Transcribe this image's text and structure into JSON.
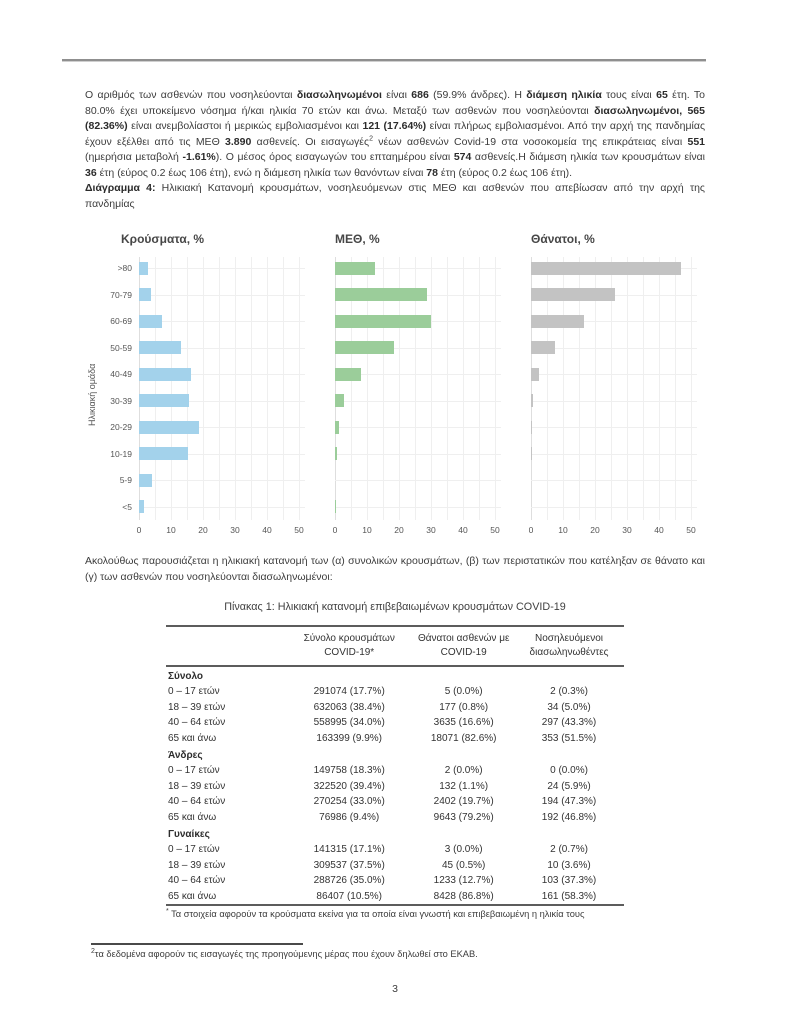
{
  "intro": {
    "segments": [
      {
        "t": "Ο αριθμός των ασθενών που νοσηλεύονται ",
        "b": false
      },
      {
        "t": "διασωληνωμένοι",
        "b": true
      },
      {
        "t": " είναι ",
        "b": false
      },
      {
        "t": "686",
        "b": true
      },
      {
        "t": " (59.9% άνδρες).  Η ",
        "b": false
      },
      {
        "t": "διάμεση ηλικία",
        "b": true
      },
      {
        "t": " τους είναι ",
        "b": false
      },
      {
        "t": "65",
        "b": true
      },
      {
        "t": " έτη.  Το 80.0% έχει υποκείμενο νόσημα ή/και ηλικία 70 ετών και άνω. Μεταξύ των ασθενών που νοσηλεύονται ",
        "b": false
      },
      {
        "t": "διασωληνωμένοι, 565 (82.36%)",
        "b": true
      },
      {
        "t": " είναι ανεμβολίαστοι ή μερικώς εμβολιασμένοι και ",
        "b": false
      },
      {
        "t": "121 (17.64%)",
        "b": true
      },
      {
        "t": " είναι πλήρως εμβολιασμένοι. Από την αρχή της πανδημίας έχουν εξέλθει από τις ΜΕΘ ",
        "b": false
      },
      {
        "t": "3.890",
        "b": true
      },
      {
        "t": " ασθενείς. Οι εισαγωγές",
        "b": false
      },
      {
        "t": "2",
        "b": false,
        "sup": true
      },
      {
        "t": " νέων ασθενών Covid-19 στα νοσοκομεία της επικράτειας είναι ",
        "b": false
      },
      {
        "t": "551",
        "b": true
      },
      {
        "t": " (ημερήσια μεταβολή ",
        "b": false
      },
      {
        "t": "-1.61%",
        "b": true
      },
      {
        "t": ").  Ο μέσος όρος εισαγωγών του επταημέρου είναι ",
        "b": false
      },
      {
        "t": "574",
        "b": true
      },
      {
        "t": " ασθενείς.Η διάμεση ηλικία των κρουσμάτων είναι ",
        "b": false
      },
      {
        "t": "36",
        "b": true
      },
      {
        "t": " έτη (εύρος 0.2 έως 106 έτη), ενώ η διάμεση ηλικία των θανόντων είναι ",
        "b": false
      },
      {
        "t": "78",
        "b": true
      },
      {
        "t": " έτη (εύρος 0.2 έως 106 έτη).",
        "b": false
      }
    ]
  },
  "figure_caption": {
    "segments": [
      {
        "t": "Διάγραμμα 4:",
        "b": true
      },
      {
        "t": " Ηλικιακή Κατανομή κρουσμάτων, νοσηλευόμενων στις ΜΕΘ και ασθενών που απεβίωσαν από την αρχή της πανδημίας",
        "b": false
      }
    ]
  },
  "chart_data": [
    {
      "type": "bar",
      "orientation": "horizontal",
      "title": "Κρούσματα, %",
      "ylabel": "Ηλικιακή ομάδα",
      "categories": [
        ">80",
        "70-79",
        "60-69",
        "50-59",
        "40-49",
        "30-39",
        "20-29",
        "10-19",
        "5-9",
        "<5"
      ],
      "values": [
        2.7,
        3.9,
        7.3,
        13.0,
        16.4,
        15.5,
        18.8,
        15.3,
        4.0,
        1.7
      ],
      "color": "#a3d2eb",
      "xlim": [
        0,
        50
      ],
      "xticks": [
        0,
        10,
        20,
        30,
        40,
        50
      ],
      "grid": "on"
    },
    {
      "type": "bar",
      "orientation": "horizontal",
      "title": "ΜΕΘ, %",
      "categories": [
        ">80",
        "70-79",
        "60-69",
        "50-59",
        "40-49",
        "30-39",
        "20-29",
        "10-19",
        "5-9",
        "<5"
      ],
      "values": [
        12.4,
        28.7,
        30.0,
        18.3,
        8.0,
        2.7,
        1.1,
        0.5,
        0.0,
        0.2
      ],
      "color": "#9bcd9a",
      "xlim": [
        0,
        50
      ],
      "xticks": [
        0,
        10,
        20,
        30,
        40,
        50
      ],
      "grid": "on"
    },
    {
      "type": "bar",
      "orientation": "horizontal",
      "title": "Θάνατοι, %",
      "categories": [
        ">80",
        "70-79",
        "60-69",
        "50-59",
        "40-49",
        "30-39",
        "20-29",
        "10-19",
        "5-9",
        "<5"
      ],
      "values": [
        46.8,
        26.1,
        16.6,
        7.5,
        2.4,
        0.7,
        0.15,
        0.05,
        0.0,
        0.0
      ],
      "color": "#c3c3c3",
      "xlim": [
        0,
        50
      ],
      "xticks": [
        0,
        10,
        20,
        30,
        40,
        50
      ],
      "grid": "on"
    }
  ],
  "middle_text": "Ακολούθως παρουσιάζεται η ηλικιακή κατανομή των (α) συνολικών κρουσμάτων, (β) των περιστατικών που κατέληξαν σε θάνατο και (γ) των ασθενών που νοσηλεύονται διασωληνωμένοι:",
  "table": {
    "title": "Πίνακας 1: Ηλικιακή κατανομή επιβεβαιωμένων κρουσμάτων COVID-19",
    "columns": [
      "",
      "Σύνολο κρουσμάτων COVID-19*",
      "Θάνατοι ασθενών με COVID-19",
      "Νοσηλευόμενοι διασωληνωθέντες"
    ],
    "sections": [
      {
        "label": "Σύνολο",
        "rows": [
          [
            "0 – 17 ετών",
            "291074 (17.7%)",
            "5 (0.0%)",
            "2 (0.3%)"
          ],
          [
            "18 – 39 ετών",
            "632063 (38.4%)",
            "177 (0.8%)",
            "34 (5.0%)"
          ],
          [
            "40 – 64 ετών",
            "558995 (34.0%)",
            "3635 (16.6%)",
            "297 (43.3%)"
          ],
          [
            "65 και άνω",
            "163399 (9.9%)",
            "18071 (82.6%)",
            "353 (51.5%)"
          ]
        ]
      },
      {
        "label": "Άνδρες",
        "rows": [
          [
            "0 – 17 ετών",
            "149758 (18.3%)",
            "2 (0.0%)",
            "0 (0.0%)"
          ],
          [
            "18 – 39 ετών",
            "322520 (39.4%)",
            "132 (1.1%)",
            "24 (5.9%)"
          ],
          [
            "40 – 64 ετών",
            "270254 (33.0%)",
            "2402 (19.7%)",
            "194 (47.3%)"
          ],
          [
            "65 και άνω",
            "76986 (9.4%)",
            "9643 (79.2%)",
            "192 (46.8%)"
          ]
        ]
      },
      {
        "label": "Γυναίκες",
        "rows": [
          [
            "0 – 17 ετών",
            "141315 (17.1%)",
            "3 (0.0%)",
            "2 (0.7%)"
          ],
          [
            "18 – 39 ετών",
            "309537 (37.5%)",
            "45 (0.5%)",
            "10 (3.6%)"
          ],
          [
            "40 – 64 ετών",
            "288726 (35.0%)",
            "1233 (12.7%)",
            "103 (37.3%)"
          ],
          [
            "65 και άνω",
            "86407 (10.5%)",
            "8428 (86.8%)",
            "161 (58.3%)"
          ]
        ]
      }
    ],
    "footnote_marker": "*",
    "footnote": " Τα στοιχεία αφορούν τα κρούσματα εκείνα για τα οποία είναι γνωστή και επιβεβαιωμένη η ηλικία τους"
  },
  "footer": {
    "footnote_marker": "2",
    "footnote": "τα δεδομένα αφορούν τις εισαγωγές της προηγούμενης μέρας που έχουν δηλωθεί στο ΕΚΑΒ.",
    "page_number": "3"
  }
}
